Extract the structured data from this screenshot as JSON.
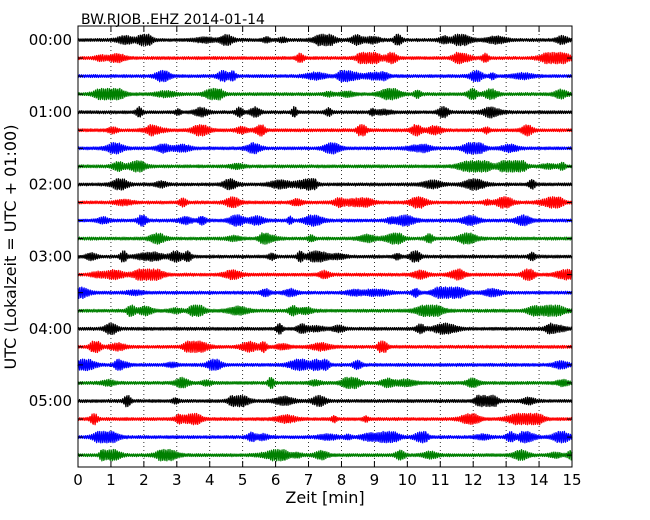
{
  "chart_data": {
    "type": "line",
    "title": "BW.RJOB..EHZ 2014-01-14",
    "xlabel": "Zeit  [min]",
    "ylabel": "UTC (Lokalzeit = UTC + 01:00)",
    "xlim": [
      0,
      15
    ],
    "x_ticks": [
      "0",
      "1",
      "2",
      "3",
      "4",
      "5",
      "6",
      "7",
      "8",
      "9",
      "10",
      "11",
      "12",
      "13",
      "14",
      "15"
    ],
    "y_tick_labels": [
      "00:00",
      "01:00",
      "02:00",
      "03:00",
      "04:00",
      "05:00"
    ],
    "row_interval_minutes": 15,
    "rows": 24,
    "colors": [
      "#000000",
      "#ff0000",
      "#0000ff",
      "#008000"
    ],
    "grid": "vertical dotted lines at each minute",
    "legend": "none"
  }
}
